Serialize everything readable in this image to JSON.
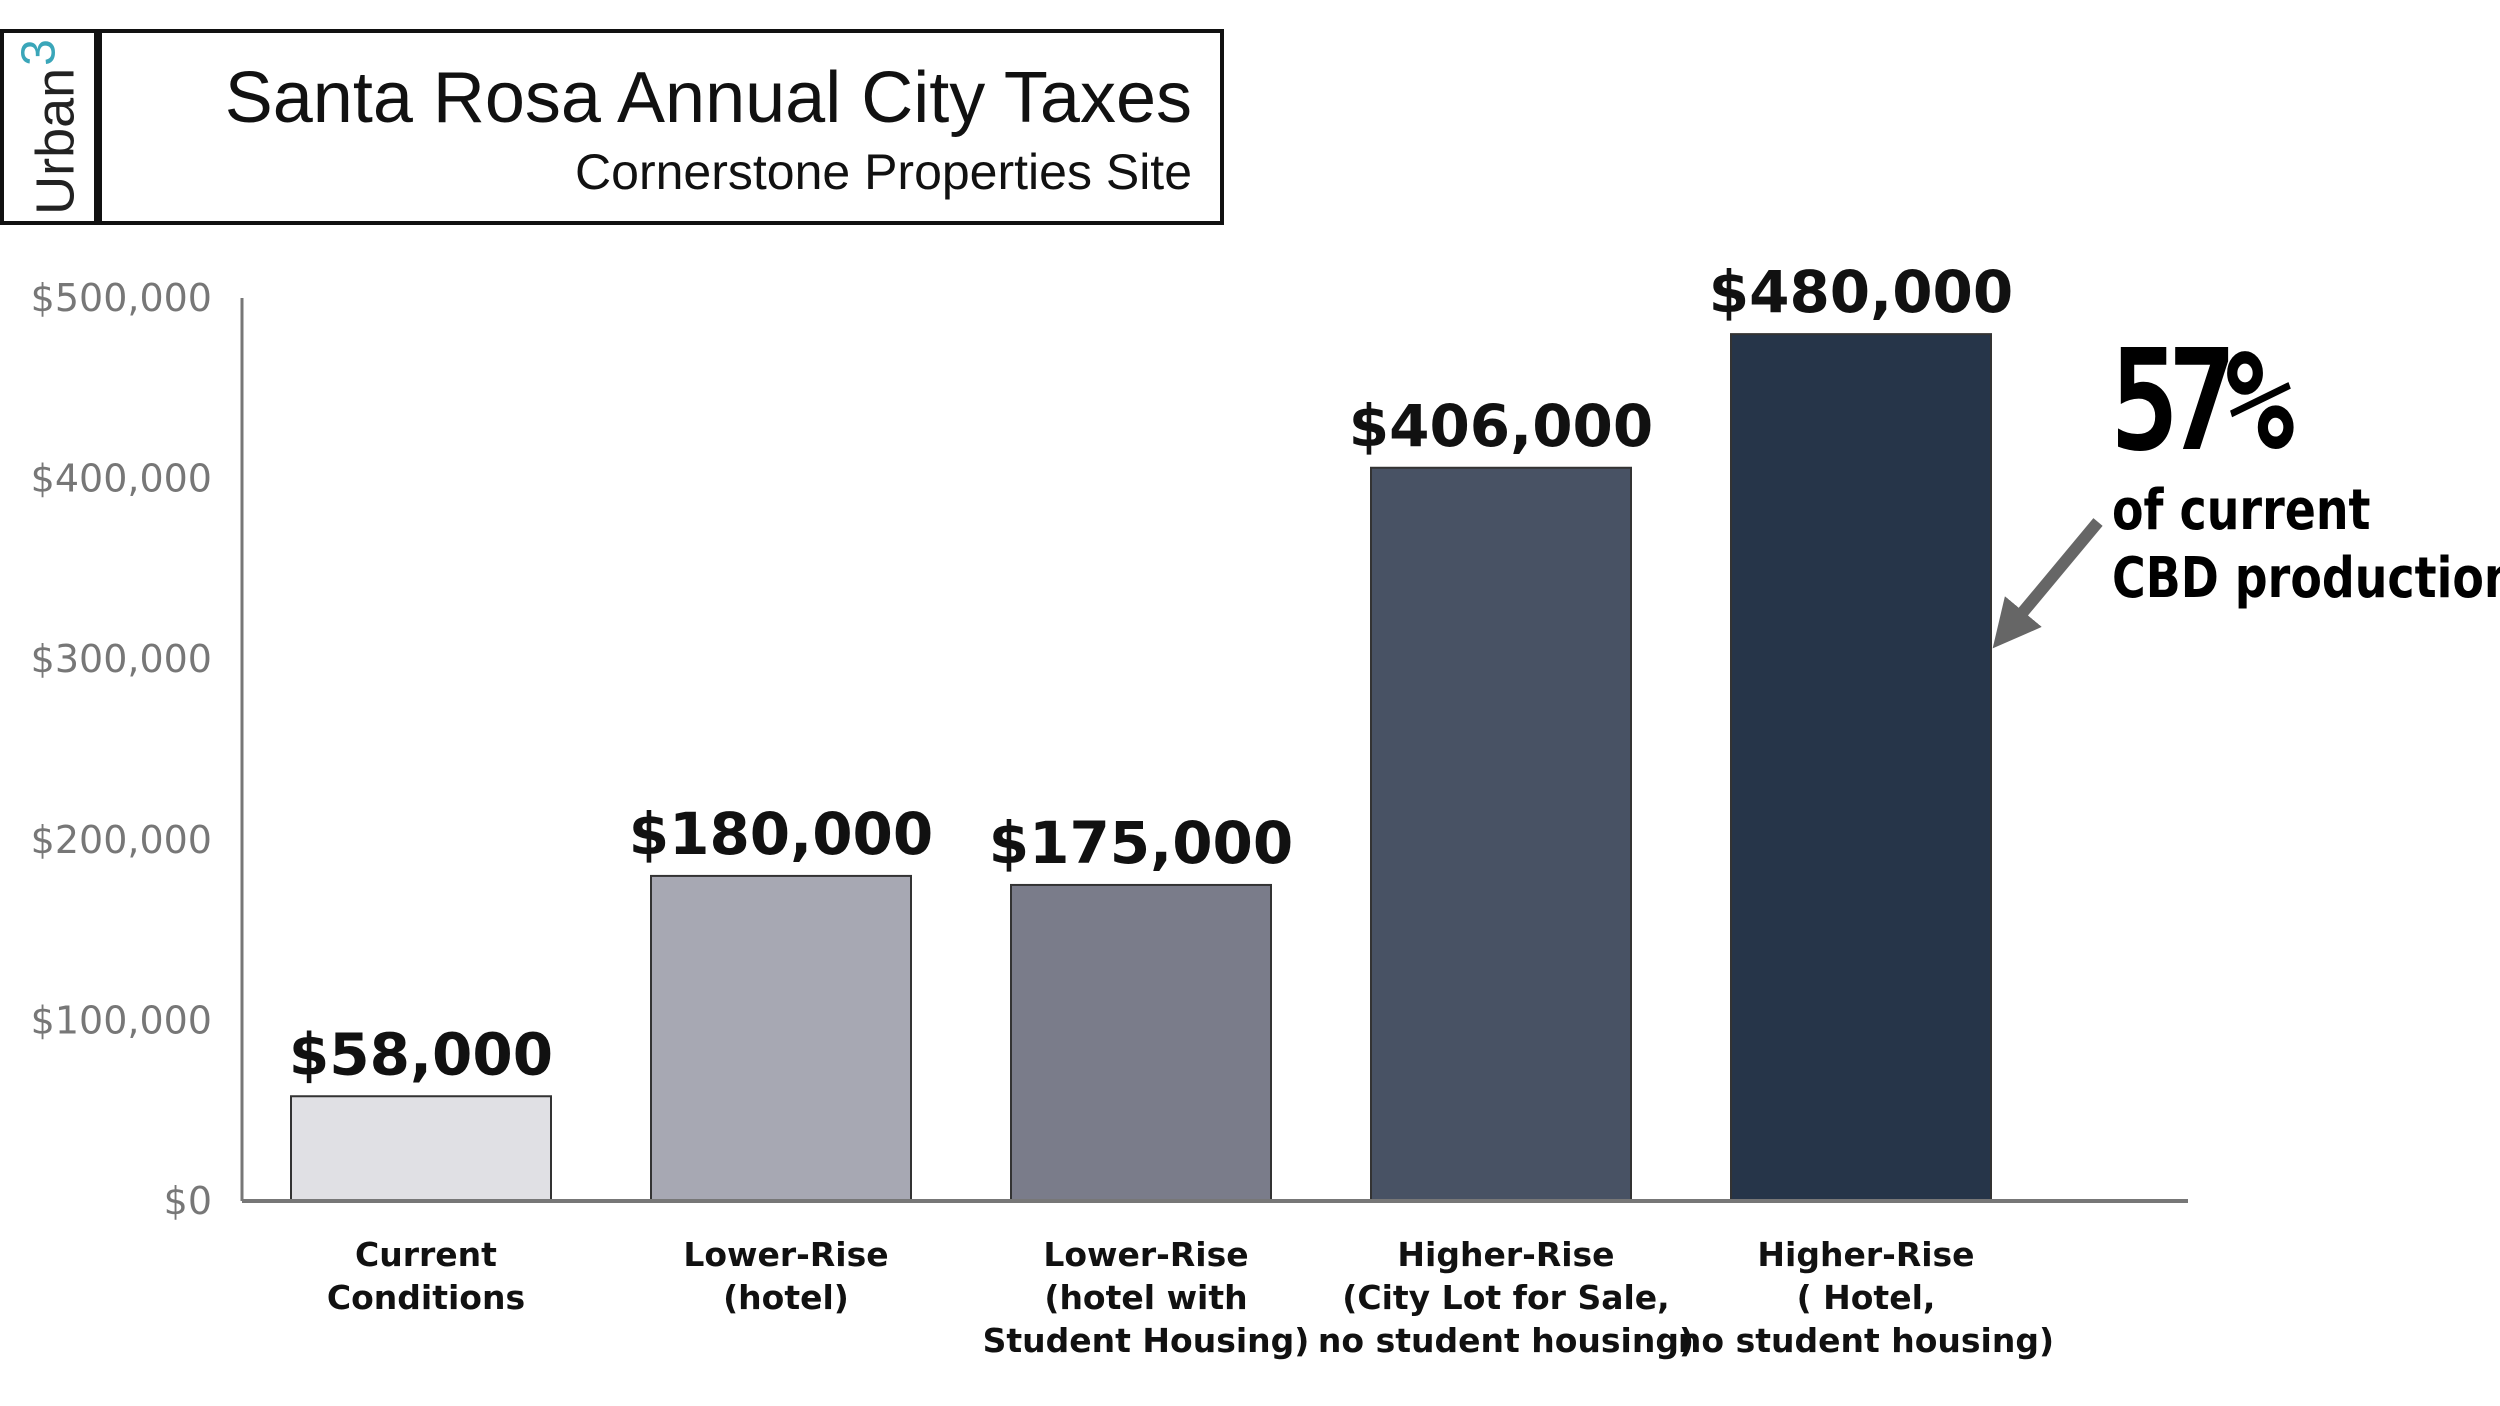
{
  "header": {
    "logo_text": "Urban",
    "logo_superscript": "3",
    "title": "Santa Rosa Annual City Taxes",
    "subtitle": "Cornerstone Properties Site"
  },
  "annotation": {
    "headline": "57%",
    "line1": "of current",
    "line2": "CBD production",
    "arrow_color": "#666666"
  },
  "chart_data": {
    "type": "bar",
    "title": "Santa Rosa Annual City Taxes",
    "subtitle": "Cornerstone Properties Site",
    "xlabel": "",
    "ylabel": "",
    "ylim": [
      0,
      500000
    ],
    "yticks": [
      0,
      100000,
      200000,
      300000,
      400000,
      500000
    ],
    "ytick_labels": [
      "$0",
      "$100,000",
      "$200,000",
      "$300,000",
      "$400,000",
      "$500,000"
    ],
    "grid": false,
    "legend": "none",
    "categories": [
      [
        "Current",
        "Conditions"
      ],
      [
        "Lower-Rise",
        "(hotel)"
      ],
      [
        "Lower-Rise",
        "(hotel with",
        "Student Housing)"
      ],
      [
        "Higher-Rise",
        "(City Lot for Sale,",
        "no student housing)"
      ],
      [
        "Higher-Rise",
        "( Hotel,",
        "no student housing)"
      ]
    ],
    "values": [
      58000,
      180000,
      175000,
      406000,
      480000
    ],
    "value_labels": [
      "$58,000",
      "$180,000",
      "$175,000",
      "$406,000",
      "$480,000"
    ],
    "colors": [
      "#e0e0e4",
      "#a7a8b3",
      "#7a7c8a",
      "#485264",
      "#263549"
    ]
  }
}
